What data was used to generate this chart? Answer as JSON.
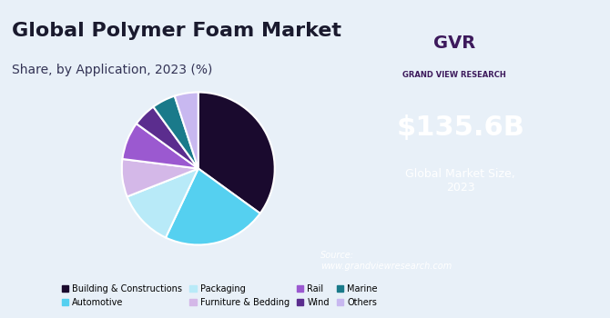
{
  "title": "Global Polymer Foam Market",
  "subtitle": "Share, by Application, 2023 (%)",
  "slices": [
    {
      "label": "Building & Constructions",
      "value": 35,
      "color": "#1a0a2e"
    },
    {
      "label": "Automotive",
      "value": 22,
      "color": "#55d0f0"
    },
    {
      "label": "Packaging",
      "value": 12,
      "color": "#b8eaf8"
    },
    {
      "label": "Furniture & Bedding",
      "value": 8,
      "color": "#d4b8e8"
    },
    {
      "label": "Rail",
      "value": 8,
      "color": "#9b59d0"
    },
    {
      "label": "Wind",
      "value": 5,
      "color": "#5b2d8e"
    },
    {
      "label": "Marine",
      "value": 5,
      "color": "#1a7a8a"
    },
    {
      "label": "Others",
      "value": 5,
      "color": "#c8b8f0"
    }
  ],
  "bg_color": "#e8f0f8",
  "right_panel_color": "#3d1a5c",
  "market_size": "$135.6B",
  "market_label": "Global Market Size,\n2023",
  "source_text": "Source:\nwww.grandviewresearch.com",
  "title_fontsize": 16,
  "subtitle_fontsize": 10
}
